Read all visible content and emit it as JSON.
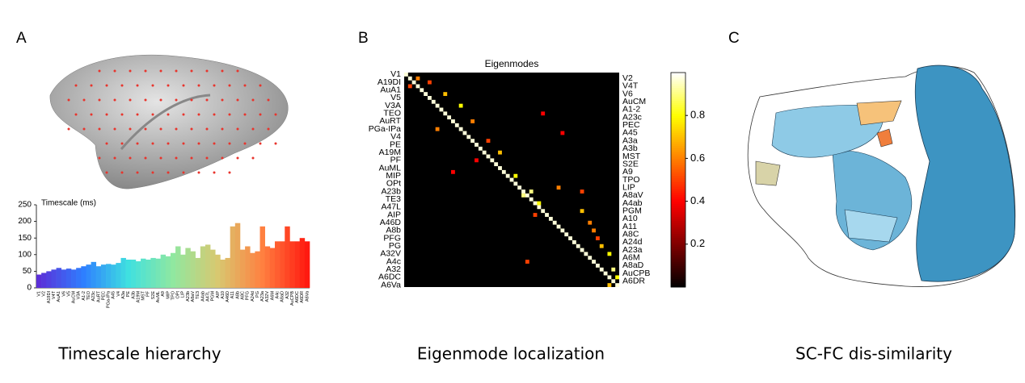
{
  "panels": [
    "A",
    "B",
    "C"
  ],
  "captions": [
    "Timescale hierarchy",
    "Eigenmode localization",
    "SC-FC dis-similarity"
  ],
  "chart_data": [
    {
      "type": "bar",
      "title": "Timescale (ms)",
      "categories": [
        "V1",
        "V2",
        "A19DI",
        "V4T",
        "AuA1",
        "V6",
        "V5",
        "AuCM",
        "V3A",
        "A1-2",
        "TEO",
        "A23c",
        "AuRT",
        "PEC",
        "PGa-IPa",
        "A45",
        "V4",
        "A3a",
        "PE",
        "A3b",
        "A19M",
        "MST",
        "PF",
        "S2E",
        "AuML",
        "A9",
        "MIP",
        "TPO",
        "OPt",
        "LIP",
        "A23b",
        "A8aV",
        "TE3",
        "A4ab",
        "A47L",
        "PGM",
        "AIP",
        "A10",
        "A46D",
        "A11",
        "A8b",
        "A8C",
        "PFG",
        "A24d",
        "PG",
        "A23a",
        "A32V",
        "A6M",
        "A4c",
        "A8aD",
        "A32",
        "AuCPB",
        "A6DC",
        "A6DR",
        "A6Va"
      ],
      "values": [
        40,
        45,
        50,
        55,
        60,
        55,
        58,
        55,
        60,
        65,
        70,
        78,
        65,
        70,
        72,
        70,
        75,
        90,
        85,
        85,
        80,
        88,
        85,
        90,
        88,
        100,
        95,
        105,
        125,
        100,
        120,
        110,
        90,
        125,
        130,
        115,
        100,
        85,
        90,
        185,
        195,
        115,
        125,
        105,
        110,
        185,
        125,
        120,
        140,
        140,
        185,
        140,
        140,
        150,
        140
      ],
      "color_scale": [
        "#5b2fd8",
        "#2e7fff",
        "#3fe0e0",
        "#90e8a0",
        "#d8c870",
        "#ff8040",
        "#ff1a10"
      ],
      "ylim": [
        0,
        250
      ],
      "yticks": [
        0,
        50,
        100,
        150,
        200,
        250
      ]
    },
    {
      "type": "heatmap",
      "title": "Eigenmodes",
      "row_labels": [
        "V1",
        "V2",
        "A19DI",
        "V4T",
        "AuA1",
        "V6",
        "V5",
        "AuCM",
        "V3A",
        "A1-2",
        "TEO",
        "A23c",
        "AuRT",
        "PEC",
        "PGa-IPa",
        "A45",
        "V4",
        "A3a",
        "PE",
        "A3b",
        "A19M",
        "MST",
        "PF",
        "S2E",
        "AuML",
        "A9",
        "MIP",
        "TPO",
        "OPt",
        "LIP",
        "A23b",
        "A8aV",
        "TE3",
        "A4ab",
        "A47L",
        "PGM",
        "AIP",
        "A10",
        "A46D",
        "A11",
        "A8b",
        "A8C",
        "PFG",
        "A24d",
        "PG",
        "A23a",
        "A32V",
        "A6M",
        "A4c",
        "A8aD",
        "A32",
        "AuCPB",
        "A6DC",
        "A6DR",
        "A6Va"
      ],
      "diagonal_value": 0.97,
      "cells": [
        [
          1,
          3,
          0.6
        ],
        [
          2,
          6,
          0.5
        ],
        [
          5,
          10,
          0.7
        ],
        [
          8,
          14,
          0.8
        ],
        [
          12,
          17,
          0.6
        ],
        [
          17,
          21,
          0.5
        ],
        [
          20,
          24,
          0.7
        ],
        [
          26,
          28,
          0.8
        ],
        [
          30,
          32,
          0.9
        ],
        [
          31,
          30,
          0.9
        ],
        [
          33,
          34,
          0.8
        ],
        [
          35,
          45,
          0.7
        ],
        [
          40,
          48,
          0.6
        ],
        [
          44,
          50,
          0.7
        ],
        [
          46,
          52,
          0.8
        ],
        [
          50,
          53,
          0.9
        ],
        [
          52,
          54,
          0.8
        ],
        [
          29,
          39,
          0.6
        ],
        [
          30,
          45,
          0.5
        ],
        [
          38,
          47,
          0.6
        ],
        [
          42,
          49,
          0.5
        ],
        [
          10,
          35,
          0.4
        ],
        [
          15,
          40,
          0.4
        ],
        [
          48,
          31,
          0.5
        ],
        [
          25,
          12,
          0.4
        ],
        [
          3,
          1,
          0.5
        ],
        [
          14,
          8,
          0.6
        ],
        [
          22,
          18,
          0.4
        ],
        [
          36,
          33,
          0.5
        ],
        [
          54,
          52,
          0.7
        ]
      ],
      "colormap": "hot",
      "zlim": [
        0,
        1
      ],
      "colorbar_ticks": [
        0.2,
        0.4,
        0.6,
        0.8
      ]
    }
  ]
}
